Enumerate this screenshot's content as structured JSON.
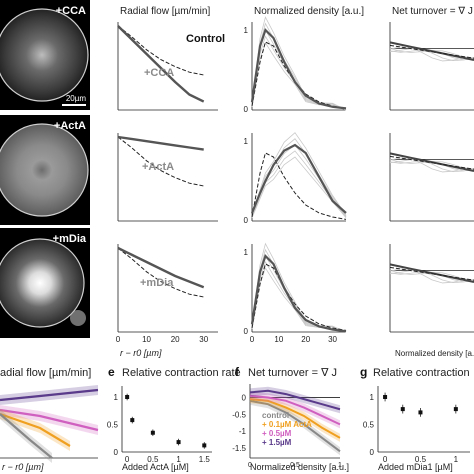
{
  "micrographs": [
    {
      "label": "+CCA",
      "scalebar": "20µm"
    },
    {
      "label": "+ActA",
      "scalebar": ""
    },
    {
      "label": "+mDia",
      "scalebar": ""
    }
  ],
  "columns": {
    "radial_flow": "Radial flow [µm/min]",
    "density": "Normalized density [a.u.]",
    "turnover": "Net turnover = ∇ J"
  },
  "row_labels": [
    "+CCA",
    "+ActA",
    "+mDia"
  ],
  "control_label": "Control",
  "xlabel_r": "r − r0 [µm]",
  "xlabel_density": "Normalized density [a.u.]",
  "bottom": {
    "d_title": "adial flow [µm/min]",
    "e_letter": "e",
    "e_title": "Relative contraction rate",
    "e_xlabel": "Added ActA [µM]",
    "f_letter": "f",
    "f_title": "Net turnover = ∇ J",
    "f_xlabel": "Normalized density [a.u.]",
    "g_letter": "g",
    "g_title": "Relative contraction",
    "g_xlabel": "Added mDia1 [µM]",
    "legend": [
      {
        "label": "control",
        "color": "#888888"
      },
      {
        "label": "+ 0.1µM ActA",
        "color": "#f0a020"
      },
      {
        "label": "+ 0.5µM",
        "color": "#d060c0"
      },
      {
        "label": "+ 1.5µM",
        "color": "#5a3a8a"
      }
    ]
  },
  "chart_data": [
    {
      "type": "line",
      "panel": "radial-flow",
      "row": "+CCA",
      "x": [
        0,
        5,
        10,
        15,
        20,
        25,
        30
      ],
      "series": [
        {
          "name": "Control",
          "style": "dashed",
          "values": [
            0,
            -0.8,
            -1.7,
            -2.4,
            -2.9,
            -3.3,
            -3.5
          ]
        },
        {
          "name": "+CCA",
          "style": "thick",
          "values": [
            0,
            -1.0,
            -2.0,
            -3.0,
            -4.0,
            -4.9,
            -5.4
          ]
        }
      ]
    },
    {
      "type": "line",
      "panel": "radial-flow",
      "row": "+ActA",
      "x": [
        0,
        5,
        10,
        15,
        20,
        25,
        30
      ],
      "series": [
        {
          "name": "Control",
          "style": "dashed",
          "values": [
            0,
            -0.8,
            -1.7,
            -2.4,
            -2.9,
            -3.3,
            -3.5
          ]
        },
        {
          "name": "+ActA",
          "style": "thick",
          "values": [
            0,
            -0.15,
            -0.3,
            -0.45,
            -0.6,
            -0.75,
            -0.9
          ]
        }
      ]
    },
    {
      "type": "line",
      "panel": "radial-flow",
      "row": "+mDia",
      "x": [
        0,
        5,
        10,
        15,
        20,
        25,
        30
      ],
      "series": [
        {
          "name": "Control",
          "style": "dashed",
          "values": [
            0,
            -0.8,
            -1.7,
            -2.4,
            -2.9,
            -3.3,
            -3.5
          ]
        },
        {
          "name": "+mDia",
          "style": "thick",
          "values": [
            0,
            -0.5,
            -1.0,
            -1.5,
            -2.0,
            -2.4,
            -2.8
          ]
        }
      ]
    },
    {
      "type": "line",
      "panel": "density",
      "row": "+CCA",
      "x": [
        0,
        3,
        5,
        8,
        12,
        16,
        20,
        25,
        30,
        35
      ],
      "series": [
        {
          "name": "Control",
          "style": "dashed",
          "values": [
            0.05,
            0.6,
            0.85,
            0.8,
            0.55,
            0.35,
            0.2,
            0.1,
            0.05,
            0.02
          ]
        },
        {
          "name": "+CCA",
          "style": "thick",
          "values": [
            0.1,
            0.8,
            1.0,
            0.9,
            0.6,
            0.35,
            0.18,
            0.08,
            0.04,
            0.02
          ]
        }
      ]
    },
    {
      "type": "line",
      "panel": "density",
      "row": "+ActA",
      "x": [
        0,
        3,
        5,
        8,
        12,
        16,
        20,
        25,
        30,
        35
      ],
      "series": [
        {
          "name": "Control",
          "style": "dashed",
          "values": [
            0.05,
            0.6,
            0.85,
            0.8,
            0.55,
            0.35,
            0.2,
            0.1,
            0.05,
            0.02
          ]
        },
        {
          "name": "+ActA",
          "style": "thick",
          "values": [
            0.1,
            0.35,
            0.5,
            0.7,
            0.88,
            0.95,
            0.85,
            0.55,
            0.25,
            0.1
          ]
        }
      ]
    },
    {
      "type": "line",
      "panel": "density",
      "row": "+mDia",
      "x": [
        0,
        3,
        5,
        8,
        12,
        16,
        20,
        25,
        30,
        35
      ],
      "series": [
        {
          "name": "Control",
          "style": "dashed",
          "values": [
            0.05,
            0.6,
            0.85,
            0.8,
            0.55,
            0.35,
            0.2,
            0.1,
            0.05,
            0.02
          ]
        },
        {
          "name": "+mDia",
          "style": "thick",
          "values": [
            0.1,
            0.75,
            0.95,
            0.85,
            0.55,
            0.3,
            0.15,
            0.07,
            0.03,
            0.01
          ]
        }
      ]
    },
    {
      "type": "bar",
      "panel": "e",
      "title": "Relative contraction rate",
      "xlabel": "Added ActA [µM]",
      "x": [
        0,
        0.1,
        0.5,
        1,
        1.5
      ],
      "values": [
        1.0,
        0.58,
        0.35,
        0.18,
        0.12
      ],
      "xticks": [
        0,
        0.5,
        1,
        1.5
      ],
      "yticks": [
        0,
        0.5,
        1
      ],
      "ylim": [
        0,
        1.2
      ]
    },
    {
      "type": "scatter",
      "panel": "g",
      "title": "Relative contraction",
      "xlabel": "Added mDia1 [µM]",
      "x": [
        0,
        0.25,
        0.5,
        1
      ],
      "values": [
        1.0,
        0.78,
        0.72,
        0.78
      ],
      "xticks": [
        0,
        0.5,
        1
      ],
      "yticks": [
        0,
        0.5,
        1
      ],
      "ylim": [
        0,
        1.2
      ]
    },
    {
      "type": "line",
      "panel": "f",
      "title": "Net turnover = ∇ J",
      "xlabel": "Normalized density [a.u.]",
      "yticks": [
        0,
        -0.5,
        -1,
        -1.5
      ],
      "xticks": [
        0,
        0.5,
        1
      ],
      "x": [
        0,
        0.2,
        0.4,
        0.6,
        0.8,
        1.0
      ],
      "series": [
        {
          "name": "control",
          "values": [
            -0.1,
            -0.2,
            -0.45,
            -0.8,
            -1.2,
            -1.6
          ]
        },
        {
          "name": "+ 0.1µM ActA",
          "values": [
            -0.05,
            -0.1,
            -0.3,
            -0.55,
            -0.9,
            -1.2
          ]
        },
        {
          "name": "+ 0.5µM",
          "values": [
            0.05,
            0.0,
            -0.1,
            -0.3,
            -0.55,
            -0.8
          ]
        },
        {
          "name": "+ 1.5µM",
          "values": [
            0.15,
            0.2,
            0.1,
            -0.05,
            -0.2,
            -0.35
          ]
        }
      ]
    }
  ]
}
